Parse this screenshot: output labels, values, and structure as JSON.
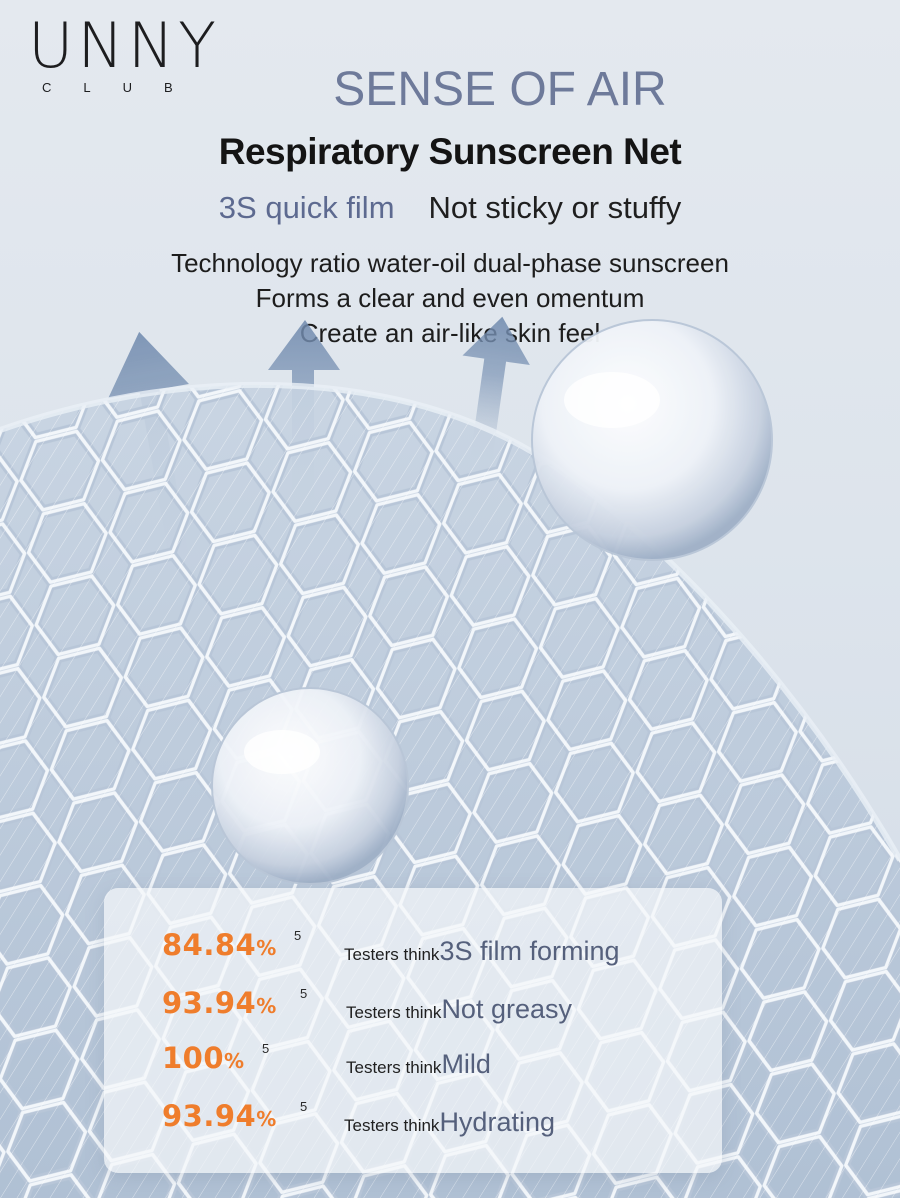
{
  "brand": {
    "wordmark": "UNNY",
    "sub": "CLUB"
  },
  "headline": "SENSE OF AIR",
  "subheadline": "Respiratory Sunscreen Net",
  "features": {
    "accent": "3S quick film",
    "plain": "Not sticky or stuffy"
  },
  "description": [
    "Technology ratio water-oil dual-phase sunscreen",
    "Forms a clear and even omentum",
    "Create an air-like skin feel"
  ],
  "stats": [
    {
      "value": "84.84",
      "unit": "%",
      "sup": "5",
      "prefix": "Testers think",
      "claim": "3S film forming"
    },
    {
      "value": "93.94",
      "unit": "%",
      "sup": "5",
      "prefix": "Testers think",
      "claim": "Not greasy"
    },
    {
      "value": "100",
      "unit": "%",
      "sup": "5",
      "prefix": "Testers think",
      "claim": "Mild"
    },
    {
      "value": "93.94",
      "unit": "%",
      "sup": "5",
      "prefix": "Testers think",
      "claim": "Hydrating"
    }
  ],
  "colors": {
    "accent_orange": "#ef7d2c",
    "slate": "#6e7a9a",
    "background": "#dde4ec"
  }
}
